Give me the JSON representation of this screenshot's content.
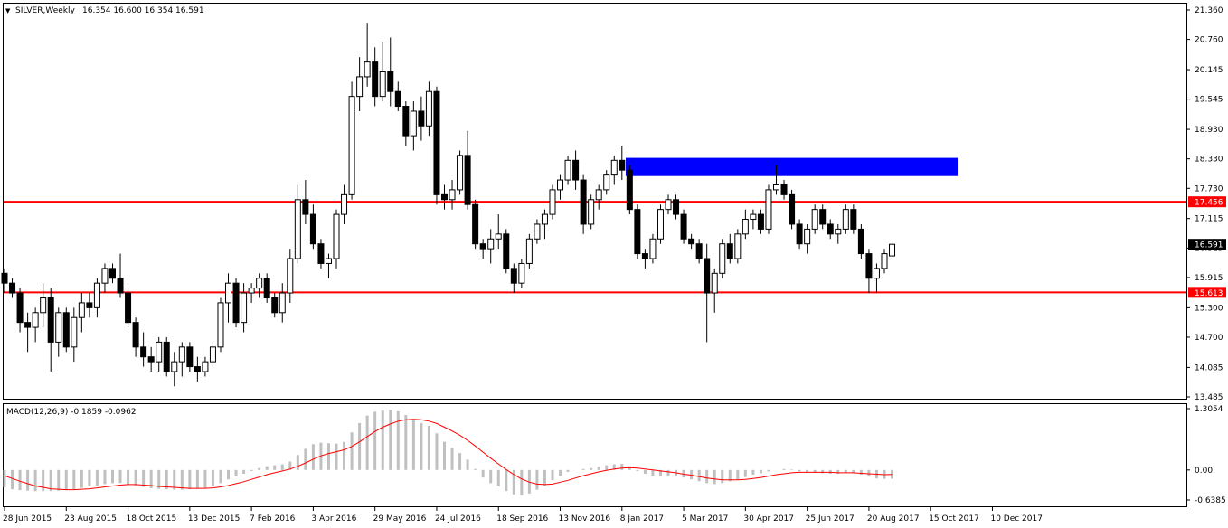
{
  "header": {
    "arrow_glyph": "▼",
    "symbol": "SILVER,Weekly",
    "ohlc": "16.354 16.600 16.354 16.591"
  },
  "macd_header": "MACD(12,26,9) -0.1859 -0.0962",
  "colors": {
    "background": "#ffffff",
    "candle": "#000000",
    "level_line": "#ff0000",
    "zone": "#0000ff",
    "macd_hist": "#c0c0c0",
    "signal": "#ff0000",
    "label_red_bg": "#ff0000",
    "label_black_bg": "#000000"
  },
  "price_axis": {
    "ticks": [
      "21.360",
      "20.760",
      "20.145",
      "19.545",
      "18.930",
      "18.330",
      "17.730",
      "17.115",
      "16.515",
      "15.915",
      "15.300",
      "14.700",
      "14.085",
      "13.485"
    ],
    "marker_labels": [
      {
        "text": "17.456",
        "value": 17.456,
        "style": "red"
      },
      {
        "text": "16.591",
        "value": 16.591,
        "style": "black"
      },
      {
        "text": "15.613",
        "value": 15.613,
        "style": "red"
      }
    ]
  },
  "macd_axis": {
    "ticks": [
      "1.3054",
      "0.00",
      "-0.6385"
    ]
  },
  "time_axis": {
    "labels": [
      "28 Jun 2015",
      "23 Aug 2015",
      "18 Oct 2015",
      "13 Dec 2015",
      "7 Feb 2016",
      "3 Apr 2016",
      "29 May 2016",
      "24 Jul 2016",
      "18 Sep 2016",
      "13 Nov 2016",
      "8 Jan 2017",
      "5 Mar 2017",
      "30 Apr 2017",
      "25 Jun 2017",
      "20 Aug 2017",
      "15 Oct 2017",
      "10 Dec 2017"
    ]
  },
  "chart_data": [
    {
      "type": "candlestick",
      "title": "SILVER,Weekly",
      "ylim": [
        13.485,
        21.36
      ],
      "horizontal_levels": [
        17.456,
        15.613
      ],
      "zone": {
        "from": "5 Feb 2017",
        "to": "24 Dec 2017",
        "low": 17.98,
        "high": 18.35
      },
      "candles": [
        [
          16.0,
          16.1,
          15.6,
          15.8
        ],
        [
          15.8,
          15.9,
          15.5,
          15.6
        ],
        [
          15.6,
          15.7,
          14.8,
          15.0
        ],
        [
          15.0,
          15.2,
          14.4,
          14.9
        ],
        [
          14.9,
          15.3,
          14.6,
          15.2
        ],
        [
          15.2,
          15.8,
          14.9,
          15.5
        ],
        [
          15.5,
          15.7,
          14.0,
          14.6
        ],
        [
          14.6,
          15.3,
          14.3,
          15.2
        ],
        [
          15.2,
          15.3,
          14.4,
          14.5
        ],
        [
          14.5,
          15.3,
          14.2,
          15.1
        ],
        [
          15.1,
          15.6,
          14.8,
          15.4
        ],
        [
          15.4,
          15.6,
          15.1,
          15.3
        ],
        [
          15.3,
          15.9,
          15.1,
          15.8
        ],
        [
          15.8,
          16.2,
          15.6,
          16.1
        ],
        [
          16.1,
          16.2,
          15.8,
          15.9
        ],
        [
          15.9,
          16.4,
          15.5,
          15.6
        ],
        [
          15.6,
          15.7,
          14.9,
          15.0
        ],
        [
          15.0,
          15.1,
          14.3,
          14.5
        ],
        [
          14.5,
          14.8,
          14.1,
          14.3
        ],
        [
          14.3,
          14.5,
          14.0,
          14.2
        ],
        [
          14.2,
          14.7,
          14.0,
          14.6
        ],
        [
          14.6,
          14.7,
          13.9,
          14.0
        ],
        [
          14.0,
          14.4,
          13.7,
          14.2
        ],
        [
          14.2,
          14.6,
          13.9,
          14.5
        ],
        [
          14.5,
          14.6,
          14.0,
          14.1
        ],
        [
          14.1,
          14.3,
          13.8,
          14.0
        ],
        [
          14.0,
          14.3,
          13.9,
          14.2
        ],
        [
          14.2,
          14.6,
          14.1,
          14.5
        ],
        [
          14.5,
          15.5,
          14.4,
          15.4
        ],
        [
          15.4,
          16.0,
          15.0,
          15.8
        ],
        [
          15.8,
          15.9,
          14.9,
          15.0
        ],
        [
          15.0,
          15.8,
          14.8,
          15.6
        ],
        [
          15.6,
          15.8,
          15.4,
          15.7
        ],
        [
          15.7,
          16.0,
          15.5,
          15.9
        ],
        [
          15.9,
          16.0,
          15.4,
          15.5
        ],
        [
          15.5,
          15.6,
          15.1,
          15.2
        ],
        [
          15.2,
          15.8,
          15.0,
          15.6
        ],
        [
          15.6,
          16.5,
          15.4,
          16.3
        ],
        [
          16.3,
          17.8,
          16.2,
          17.5
        ],
        [
          17.5,
          17.9,
          17.0,
          17.2
        ],
        [
          17.2,
          17.4,
          16.5,
          16.6
        ],
        [
          16.6,
          16.7,
          16.1,
          16.2
        ],
        [
          16.2,
          16.4,
          15.9,
          16.3
        ],
        [
          16.3,
          17.3,
          16.1,
          17.2
        ],
        [
          17.2,
          17.8,
          17.0,
          17.6
        ],
        [
          17.6,
          19.9,
          17.5,
          19.6
        ],
        [
          19.6,
          20.4,
          19.3,
          20.0
        ],
        [
          20.0,
          21.1,
          19.8,
          20.3
        ],
        [
          20.3,
          20.6,
          19.4,
          19.6
        ],
        [
          19.6,
          20.7,
          19.5,
          20.1
        ],
        [
          20.1,
          20.8,
          19.4,
          19.7
        ],
        [
          19.7,
          19.9,
          19.3,
          19.4
        ],
        [
          19.4,
          19.5,
          18.6,
          18.8
        ],
        [
          18.8,
          19.5,
          18.5,
          19.3
        ],
        [
          19.3,
          19.6,
          18.7,
          19.0
        ],
        [
          19.0,
          19.9,
          18.8,
          19.7
        ],
        [
          19.7,
          19.8,
          17.4,
          17.6
        ],
        [
          17.6,
          17.8,
          17.3,
          17.5
        ],
        [
          17.5,
          17.9,
          17.3,
          17.7
        ],
        [
          17.7,
          18.5,
          17.6,
          18.4
        ],
        [
          18.4,
          18.9,
          17.3,
          17.4
        ],
        [
          17.4,
          17.5,
          16.5,
          16.6
        ],
        [
          16.6,
          16.7,
          16.3,
          16.5
        ],
        [
          16.5,
          16.9,
          16.2,
          16.7
        ],
        [
          16.7,
          17.2,
          16.5,
          16.8
        ],
        [
          16.8,
          16.9,
          16.0,
          16.1
        ],
        [
          16.1,
          16.2,
          15.6,
          15.8
        ],
        [
          15.8,
          16.3,
          15.7,
          16.2
        ],
        [
          16.2,
          16.8,
          16.1,
          16.7
        ],
        [
          16.7,
          17.1,
          16.6,
          17.0
        ],
        [
          17.0,
          17.3,
          16.7,
          17.2
        ],
        [
          17.2,
          17.8,
          17.1,
          17.7
        ],
        [
          17.7,
          18.0,
          17.5,
          17.9
        ],
        [
          17.9,
          18.4,
          17.8,
          18.3
        ],
        [
          18.3,
          18.5,
          17.7,
          17.9
        ],
        [
          17.9,
          18.0,
          16.8,
          17.0
        ],
        [
          17.0,
          17.6,
          16.9,
          17.5
        ],
        [
          17.5,
          17.8,
          17.3,
          17.7
        ],
        [
          17.7,
          18.1,
          17.6,
          18.0
        ],
        [
          18.0,
          18.4,
          17.8,
          18.3
        ],
        [
          18.3,
          18.6,
          17.9,
          18.1
        ],
        [
          18.1,
          18.2,
          17.2,
          17.3
        ],
        [
          17.3,
          17.4,
          16.3,
          16.4
        ],
        [
          16.4,
          16.5,
          16.1,
          16.3
        ],
        [
          16.3,
          16.8,
          16.2,
          16.7
        ],
        [
          16.7,
          17.4,
          16.6,
          17.3
        ],
        [
          17.3,
          17.6,
          17.2,
          17.5
        ],
        [
          17.5,
          17.6,
          17.1,
          17.2
        ],
        [
          17.2,
          17.3,
          16.6,
          16.7
        ],
        [
          16.7,
          16.8,
          16.5,
          16.6
        ],
        [
          16.6,
          16.7,
          16.2,
          16.3
        ],
        [
          16.3,
          16.6,
          14.6,
          15.6
        ],
        [
          15.6,
          16.1,
          15.2,
          16.0
        ],
        [
          16.0,
          16.7,
          15.9,
          16.6
        ],
        [
          16.6,
          16.8,
          16.2,
          16.3
        ],
        [
          16.3,
          16.9,
          16.2,
          16.8
        ],
        [
          16.8,
          17.3,
          16.7,
          17.1
        ],
        [
          17.1,
          17.3,
          16.9,
          17.2
        ],
        [
          17.2,
          17.3,
          16.8,
          16.9
        ],
        [
          16.9,
          17.8,
          16.8,
          17.7
        ],
        [
          17.7,
          18.2,
          17.6,
          17.8
        ],
        [
          17.8,
          17.9,
          17.5,
          17.6
        ],
        [
          17.6,
          17.7,
          16.9,
          17.0
        ],
        [
          17.0,
          17.1,
          16.5,
          16.6
        ],
        [
          16.6,
          17.0,
          16.4,
          16.9
        ],
        [
          16.9,
          17.4,
          16.8,
          17.3
        ],
        [
          17.3,
          17.4,
          16.9,
          17.0
        ],
        [
          17.0,
          17.1,
          16.7,
          16.8
        ],
        [
          16.8,
          17.0,
          16.6,
          16.9
        ],
        [
          16.9,
          17.4,
          16.8,
          17.3
        ],
        [
          17.3,
          17.4,
          16.8,
          16.9
        ],
        [
          16.9,
          17.0,
          16.3,
          16.4
        ],
        [
          16.4,
          16.5,
          15.6,
          15.9
        ],
        [
          15.9,
          16.2,
          15.6,
          16.1
        ],
        [
          16.1,
          16.5,
          16.0,
          16.4
        ],
        [
          16.354,
          16.6,
          16.354,
          16.591
        ]
      ]
    },
    {
      "type": "bar+line",
      "title": "MACD(12,26,9)",
      "ylim": [
        -0.6385,
        1.3054
      ],
      "series": [
        {
          "name": "MACD",
          "type": "bar",
          "values": [
            -0.37,
            -0.41,
            -0.43,
            -0.44,
            -0.45,
            -0.45,
            -0.45,
            -0.44,
            -0.43,
            -0.41,
            -0.38,
            -0.35,
            -0.33,
            -0.3,
            -0.28,
            -0.28,
            -0.3,
            -0.33,
            -0.36,
            -0.39,
            -0.4,
            -0.41,
            -0.42,
            -0.42,
            -0.41,
            -0.4,
            -0.38,
            -0.34,
            -0.28,
            -0.2,
            -0.14,
            -0.08,
            -0.02,
            0.04,
            0.08,
            0.1,
            0.12,
            0.18,
            0.32,
            0.45,
            0.55,
            0.58,
            0.57,
            0.56,
            0.6,
            0.8,
            1.0,
            1.16,
            1.24,
            1.27,
            1.28,
            1.25,
            1.17,
            1.08,
            1.0,
            0.94,
            0.78,
            0.6,
            0.47,
            0.36,
            0.22,
            0.02,
            -0.16,
            -0.28,
            -0.35,
            -0.45,
            -0.52,
            -0.54,
            -0.5,
            -0.42,
            -0.33,
            -0.22,
            -0.12,
            -0.04,
            0.0,
            0.02,
            0.04,
            0.07,
            0.1,
            0.12,
            0.13,
            0.08,
            -0.02,
            -0.08,
            -0.12,
            -0.13,
            -0.12,
            -0.12,
            -0.16,
            -0.2,
            -0.24,
            -0.28,
            -0.3,
            -0.28,
            -0.24,
            -0.2,
            -0.15,
            -0.1,
            -0.07,
            -0.03,
            0.0,
            0.02,
            0.01,
            -0.03,
            -0.06,
            -0.06,
            -0.07,
            -0.08,
            -0.08,
            -0.06,
            -0.07,
            -0.1,
            -0.14,
            -0.18,
            -0.19,
            -0.1859
          ]
        },
        {
          "name": "Signal",
          "type": "line",
          "values": [
            -0.12,
            -0.18,
            -0.24,
            -0.29,
            -0.34,
            -0.37,
            -0.4,
            -0.41,
            -0.42,
            -0.42,
            -0.41,
            -0.4,
            -0.38,
            -0.36,
            -0.34,
            -0.32,
            -0.31,
            -0.31,
            -0.32,
            -0.33,
            -0.35,
            -0.36,
            -0.37,
            -0.38,
            -0.39,
            -0.39,
            -0.39,
            -0.38,
            -0.36,
            -0.33,
            -0.29,
            -0.25,
            -0.2,
            -0.15,
            -0.1,
            -0.06,
            -0.02,
            0.02,
            0.08,
            0.15,
            0.23,
            0.3,
            0.35,
            0.39,
            0.43,
            0.5,
            0.6,
            0.71,
            0.82,
            0.91,
            0.98,
            1.04,
            1.07,
            1.08,
            1.07,
            1.04,
            0.99,
            0.91,
            0.83,
            0.74,
            0.63,
            0.51,
            0.38,
            0.25,
            0.13,
            0.01,
            -0.1,
            -0.19,
            -0.26,
            -0.3,
            -0.31,
            -0.3,
            -0.26,
            -0.22,
            -0.17,
            -0.12,
            -0.08,
            -0.04,
            -0.01,
            0.02,
            0.04,
            0.05,
            0.04,
            0.02,
            0.0,
            -0.02,
            -0.04,
            -0.06,
            -0.09,
            -0.11,
            -0.14,
            -0.17,
            -0.19,
            -0.21,
            -0.21,
            -0.21,
            -0.2,
            -0.18,
            -0.16,
            -0.13,
            -0.1,
            -0.08,
            -0.06,
            -0.05,
            -0.05,
            -0.05,
            -0.05,
            -0.05,
            -0.06,
            -0.06,
            -0.06,
            -0.07,
            -0.08,
            -0.09,
            -0.1,
            -0.0962
          ]
        }
      ]
    }
  ]
}
